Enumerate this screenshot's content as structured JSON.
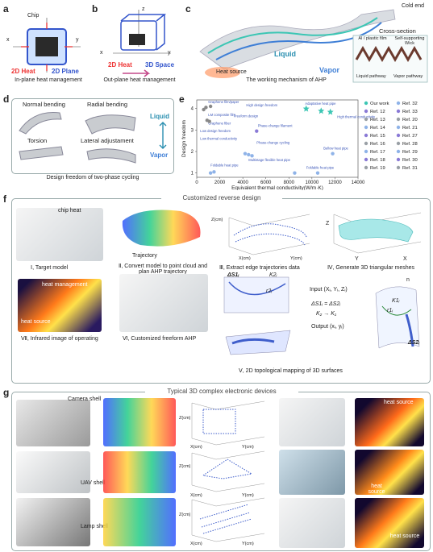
{
  "panels": {
    "a": {
      "label": "a",
      "chip": "Chip",
      "heat": "2D Heat",
      "plane": "2D Plane",
      "caption": "In-plane heat management",
      "axis_x": "x",
      "axis_y": "y"
    },
    "b": {
      "label": "b",
      "heat": "2D Heat",
      "space": "3D Space",
      "caption": "Out-plane heat management",
      "axis_z": "z",
      "axis_x": "x",
      "axis_y": "y"
    },
    "c": {
      "label": "c",
      "cold_end": "Cold end",
      "liquid": "Liquid",
      "vapor": "Vapor",
      "heat_source": "Heat source",
      "caption": "The working mechanism of AHP",
      "cross_section": "Cross-section",
      "film": "Al / plastic film",
      "wick": "Self-supporting Wick",
      "liquid_pathway": "Liquid pathway",
      "vapor_pathway": "Vapor pathway"
    },
    "d": {
      "label": "d",
      "normal": "Normal bending",
      "radial": "Radial bending",
      "torsion": "Torsion",
      "lateral": "Lateral adjustament",
      "liquid": "Liquid",
      "vapor": "Vapor",
      "caption": "Design freedom of two-phase cycling"
    },
    "e": {
      "label": "e"
    },
    "f": {
      "label": "f",
      "title": "Customized reverse design",
      "chip_heat": "chip heat",
      "trajectory": "Trajectory",
      "step1": "Ⅰ, Target model",
      "step2": "Ⅱ, Convert model to point cloud and plan AHP trajectory",
      "step3": "Ⅲ, Extract edge trajectories data",
      "step4": "Ⅳ, Generate 3D triangular meshes",
      "step5": "Ⅴ, 2D topological mapping of 3D surfaces",
      "step6": "Ⅵ, Customized freeform AHP",
      "step7": "Ⅶ, Infrared image of operating",
      "heat_management": "heat management",
      "heat_source": "heat source",
      "input": "Input (Xᵢ, Yᵢ, Zᵢ)",
      "eq1": "ΔS1ᵢ = ΔS2ᵢ",
      "eq2": "K₂ → K₁",
      "output": "Output (xᵢ, yᵢ)",
      "ds1": "ΔS1ᵢ",
      "ds2": "ΔS2ᵢ",
      "k2": "K2ᵢ",
      "k1": "K1ᵢ",
      "r2": "r2ᵢ",
      "r1": "r1ᵢ",
      "n": "n",
      "xcm": "X(cm)",
      "ycm": "Y(cm)",
      "zcm": "Z(cm)",
      "z": "Z",
      "x": "X",
      "y": "Y"
    },
    "g": {
      "label": "g",
      "title": "Typical 3D complex electronic devices",
      "camera": "Camera shell",
      "uav": "UAV shell",
      "lamp": "Lamp shell",
      "heat_source": "heat source",
      "xcm": "X(cm)",
      "ycm": "Y(cm)",
      "zcm": "Z(cm)"
    }
  },
  "chart_data": {
    "type": "scatter",
    "xlabel": "Equivalent thermal conductivity(W/m·K)",
    "ylabel": "Design freedom",
    "xticks": [
      0,
      2000,
      4000,
      6000,
      8000,
      10000,
      12000,
      14000
    ],
    "yticks": [
      1,
      2,
      3,
      4
    ],
    "xlim": [
      0,
      14000
    ],
    "ylim": [
      0.8,
      4.4
    ],
    "annotations": [
      "Graphene film/paper",
      "High design freedom",
      "Adaptative heat pipe",
      "High thermal conductivity",
      "LM composite film",
      "Graphene fiber",
      "Freeform design",
      "Phase-change filament",
      "Low design freedom",
      "Low thermal conductivity",
      "Phase-change cycling",
      "Multistage flexible heat pipe",
      "Bellow heat pipe",
      "Foldable heat pipe",
      "Foldable heat pipe"
    ],
    "legend": [
      "Our work",
      "Ref. 12",
      "Ref. 13",
      "Ref. 14",
      "Ref. 15",
      "Ref. 16",
      "Ref. 17",
      "Ref. 18",
      "Ref. 19",
      "Ref. 32",
      "Ref. 33",
      "Ref. 20",
      "Ref. 21",
      "Ref. 27",
      "Ref. 28",
      "Ref. 29",
      "Ref. 30",
      "Ref. 31"
    ],
    "series": [
      {
        "name": "Our work",
        "color": "#3cc6b4",
        "points": [
          [
            9500,
            4.0
          ],
          [
            11600,
            3.85
          ],
          [
            10800,
            3.9
          ]
        ]
      },
      {
        "name": "Graphene film/paper",
        "color": "#888888",
        "points": [
          [
            800,
            4.05
          ],
          [
            1200,
            4.1
          ],
          [
            600,
            3.95
          ]
        ]
      },
      {
        "name": "LM composite film",
        "color": "#888888",
        "points": [
          [
            900,
            3.45
          ],
          [
            1100,
            3.4
          ]
        ]
      },
      {
        "name": "Phase-change filament",
        "color": "#8a7ad6",
        "points": [
          [
            5200,
            2.95
          ]
        ]
      },
      {
        "name": "Multistage flexible heat pipe",
        "color": "#8fb3e8",
        "points": [
          [
            4200,
            1.9
          ],
          [
            4500,
            1.85
          ],
          [
            4800,
            1.8
          ]
        ]
      },
      {
        "name": "Bellow heat pipe",
        "color": "#8fb3e8",
        "points": [
          [
            11800,
            1.9
          ]
        ]
      },
      {
        "name": "Foldable heat pipe",
        "color": "#8fb3e8",
        "points": [
          [
            1200,
            1.0
          ],
          [
            1500,
            1.05
          ],
          [
            8500,
            1.0
          ],
          [
            10500,
            1.0
          ]
        ]
      }
    ]
  }
}
